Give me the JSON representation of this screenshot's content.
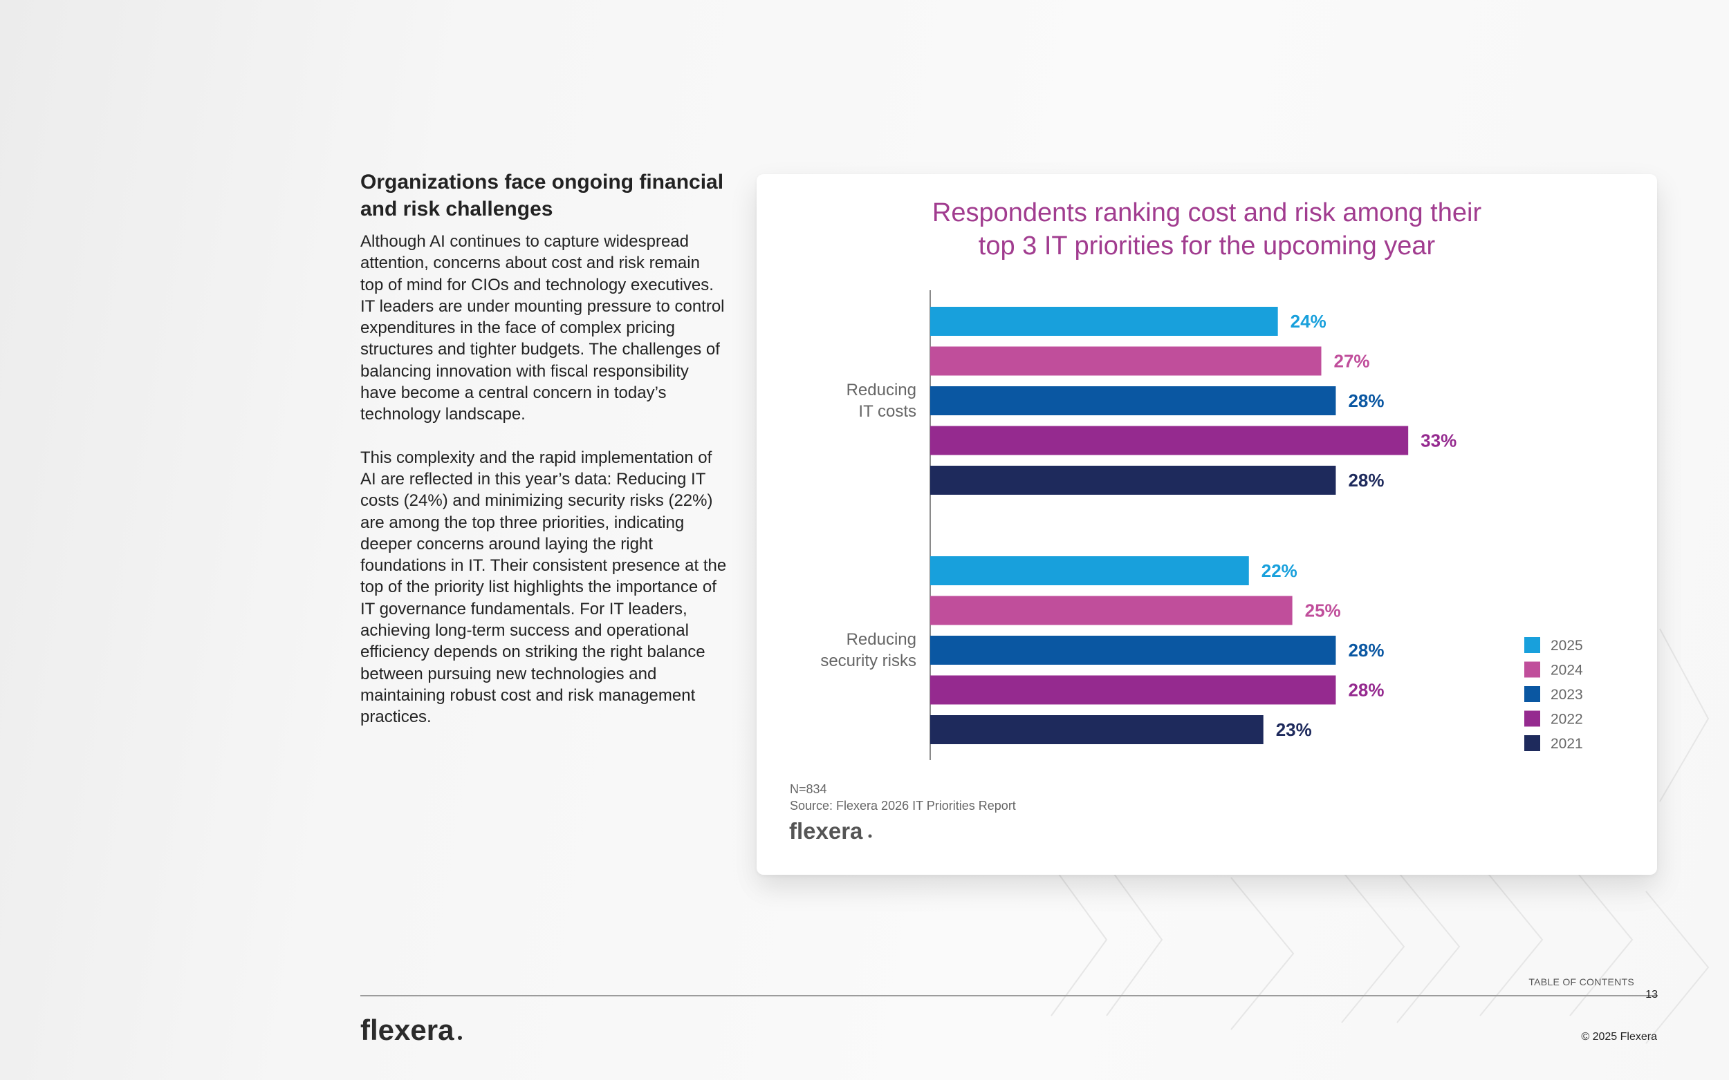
{
  "article": {
    "heading": "Organizations face ongoing financial and risk challenges",
    "paragraph_1": "Although AI continues to capture widespread attention, concerns about cost and risk remain top of mind for CIOs and technology executives. IT leaders are under mounting pressure to control expenditures in the face of complex pricing structures and tighter budgets. The challenges of balancing innovation with fiscal responsibility have become a central concern in today’s technology landscape.",
    "paragraph_2": "This complexity and the rapid implementation of AI are reflected in this year’s data: Reducing IT costs (24%) and minimizing security risks (22%) are among the top three priorities, indicating deeper concerns around laying the right foundations in IT. Their consistent presence at the top of the priority list highlights the importance of IT governance fundamentals. For IT leaders, achieving long-term success and operational efficiency depends on striking the right balance between pursuing new technologies and maintaining robust cost and risk management practices."
  },
  "chart_data": {
    "type": "bar",
    "orientation": "horizontal",
    "title_lines": [
      "Respondents ranking cost and risk among their",
      "top 3 IT priorities for the upcoming year"
    ],
    "categories": [
      {
        "lines": [
          "Reducing",
          "IT costs"
        ]
      },
      {
        "lines": [
          "Reducing",
          "security risks"
        ]
      }
    ],
    "series": [
      {
        "name": "2025",
        "color": "#18a0dc",
        "values": [
          24,
          22
        ]
      },
      {
        "name": "2024",
        "color": "#c04e9b",
        "values": [
          27,
          25
        ]
      },
      {
        "name": "2023",
        "color": "#0a57a2",
        "values": [
          28,
          28
        ]
      },
      {
        "name": "2022",
        "color": "#952a8f",
        "values": [
          33,
          28
        ]
      },
      {
        "name": "2021",
        "color": "#1e2a5c",
        "values": [
          28,
          23
        ]
      }
    ],
    "value_suffix": "%",
    "legend_position": "right",
    "grid": false,
    "xlim": [
      0,
      36
    ],
    "notes": [
      "N=834",
      "Source: Flexera 2026 IT Priorities Report"
    ],
    "logo_text": "flexera"
  },
  "colors": {
    "title": "#a13c8f",
    "axis_label": "#666666",
    "note": "#666666"
  },
  "footer": {
    "logo_text": "flexera",
    "toc_label": "TABLE OF CONTENTS",
    "page_number": "13",
    "copyright": "© 2025 Flexera"
  }
}
